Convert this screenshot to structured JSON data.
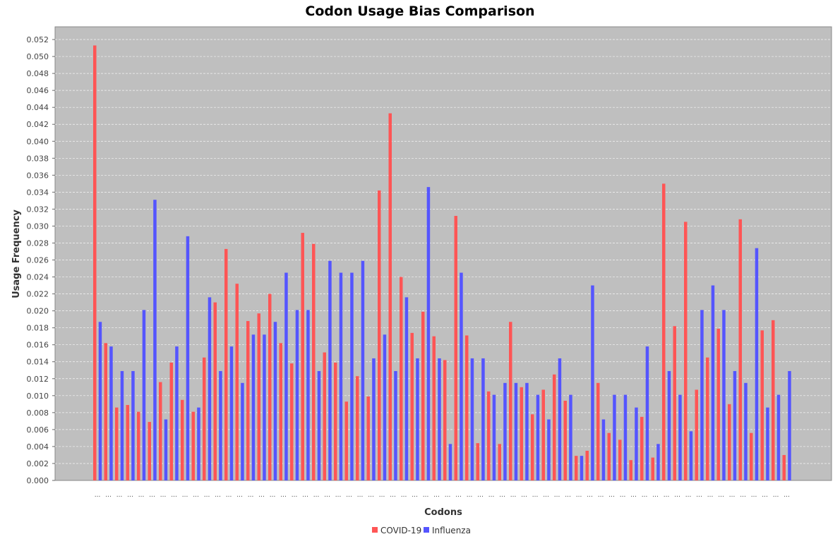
{
  "chart_data": {
    "type": "bar",
    "title": "Codon Usage Bias Comparison",
    "xlabel": "Codons",
    "ylabel": "Usage Frequency",
    "ylim": [
      0,
      0.0535
    ],
    "yticks": [
      "0.000",
      "0.002",
      "0.004",
      "0.006",
      "0.008",
      "0.010",
      "0.012",
      "0.014",
      "0.016",
      "0.018",
      "0.020",
      "0.022",
      "0.024",
      "0.026",
      "0.028",
      "0.030",
      "0.032",
      "0.034",
      "0.036",
      "0.038",
      "0.040",
      "0.042",
      "0.044",
      "0.046",
      "0.048",
      "0.050",
      "0.052"
    ],
    "category_label": "...",
    "category_count": 64,
    "grid": true,
    "legend_position": "bottom-center",
    "plot_background": "#bfbfbf",
    "series": [
      {
        "name": "COVID-19",
        "color": "#ff5555",
        "values": [
          0.0513,
          0.0162,
          0.0086,
          0.0089,
          0.0081,
          0.0069,
          0.0116,
          0.0139,
          0.0095,
          0.0081,
          0.0145,
          0.021,
          0.0273,
          0.0232,
          0.0188,
          0.0197,
          0.022,
          0.0162,
          0.0138,
          0.0292,
          0.0279,
          0.0151,
          0.0139,
          0.0093,
          0.0123,
          0.0099,
          0.0342,
          0.0433,
          0.024,
          0.0174,
          0.0199,
          0.017,
          0.0142,
          0.0312,
          0.0171,
          0.0044,
          0.0105,
          0.0043,
          0.0187,
          0.011,
          0.0078,
          0.0107,
          0.0125,
          0.0094,
          0.0029,
          0.0035,
          0.0115,
          0.0056,
          0.0048,
          0.0024,
          0.0075,
          0.0027,
          0.035,
          0.0182,
          0.0305,
          0.0107,
          0.0145,
          0.0179,
          0.009,
          0.0308,
          0.0056,
          0.0177,
          0.0189,
          0.003
        ]
      },
      {
        "name": "Influenza",
        "color": "#5555ff",
        "values": [
          0.0187,
          0.0158,
          0.0129,
          0.0129,
          0.0201,
          0.0331,
          0.0072,
          0.0158,
          0.0288,
          0.0086,
          0.0216,
          0.0129,
          0.0158,
          0.0115,
          0.0172,
          0.0172,
          0.0187,
          0.0245,
          0.0201,
          0.0201,
          0.0129,
          0.0259,
          0.0245,
          0.0245,
          0.0259,
          0.0144,
          0.0172,
          0.0129,
          0.0216,
          0.0144,
          0.0346,
          0.0144,
          0.0043,
          0.0245,
          0.0144,
          0.0144,
          0.0101,
          0.0115,
          0.0115,
          0.0115,
          0.0101,
          0.0072,
          0.0144,
          0.0101,
          0.0029,
          0.023,
          0.0072,
          0.0101,
          0.0101,
          0.0086,
          0.0158,
          0.0043,
          0.0129,
          0.0101,
          0.0058,
          0.0201,
          0.023,
          0.0201,
          0.0129,
          0.0115,
          0.0274,
          0.0086,
          0.0101,
          0.0129
        ]
      }
    ]
  }
}
